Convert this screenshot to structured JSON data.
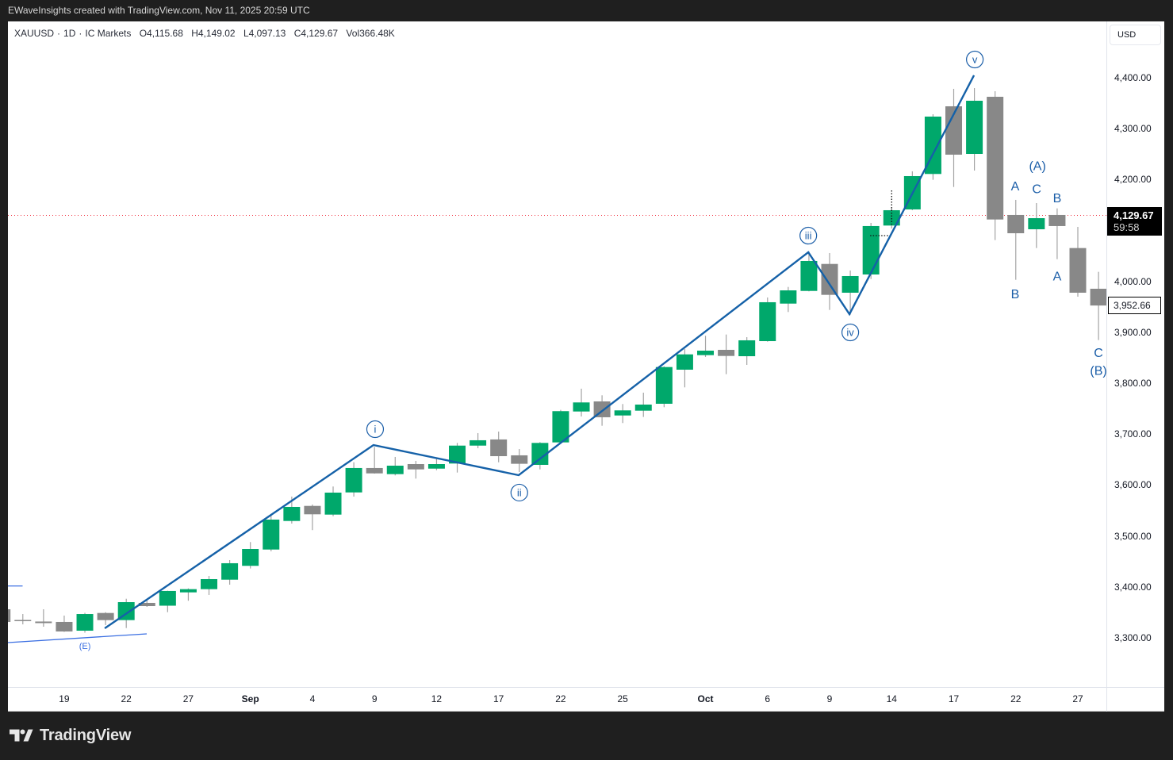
{
  "header": {
    "attribution": "EWaveInsights created with TradingView.com, Nov 11, 2025 20:59 UTC"
  },
  "legend": {
    "symbol": "XAUUSD",
    "separator": "·",
    "interval": "1D",
    "exchange": "IC Markets",
    "open": "O4,115.68",
    "high": "H4,149.02",
    "low": "L4,097.13",
    "close": "C4,129.67",
    "volume": "Vol366.48K"
  },
  "price_axis": {
    "currency": "USD",
    "ticks": [
      {
        "label": "4,400.00",
        "price": 4400
      },
      {
        "label": "4,300.00",
        "price": 4300
      },
      {
        "label": "4,200.00",
        "price": 4200
      },
      {
        "label": "4,000.00",
        "price": 4000
      },
      {
        "label": "3,900.00",
        "price": 3900
      },
      {
        "label": "3,800.00",
        "price": 3800
      },
      {
        "label": "3,700.00",
        "price": 3700
      },
      {
        "label": "3,600.00",
        "price": 3600
      },
      {
        "label": "3,500.00",
        "price": 3500
      },
      {
        "label": "3,400.00",
        "price": 3400
      },
      {
        "label": "3,300.00",
        "price": 3300
      }
    ],
    "last_price": {
      "label": "4,129.67",
      "countdown": "59:58",
      "price": 4129.67
    },
    "marker": {
      "label": "3,952.66",
      "price": 3952.66
    }
  },
  "time_axis": {
    "labels": [
      {
        "label": "19",
        "i": 0
      },
      {
        "label": "22",
        "i": 3
      },
      {
        "label": "27",
        "i": 6
      },
      {
        "label": "Sep",
        "i": 9,
        "is_month": true
      },
      {
        "label": "4",
        "i": 12
      },
      {
        "label": "9",
        "i": 15
      },
      {
        "label": "12",
        "i": 18
      },
      {
        "label": "17",
        "i": 21
      },
      {
        "label": "22",
        "i": 24
      },
      {
        "label": "25",
        "i": 27
      },
      {
        "label": "Oct",
        "i": 31,
        "is_month": true
      },
      {
        "label": "6",
        "i": 34
      },
      {
        "label": "9",
        "i": 37
      },
      {
        "label": "14",
        "i": 40
      },
      {
        "label": "17",
        "i": 43
      },
      {
        "label": "22",
        "i": 46
      },
      {
        "label": "27",
        "i": 49
      }
    ]
  },
  "footer": {
    "brand": "TradingView"
  },
  "colors": {
    "up": "#00a86b",
    "down": "#888888",
    "wick": "#a3a3a3",
    "wave_line": "#1561a8",
    "label": "#1b5ea8",
    "trendline": "#3b6fe2",
    "price_line": "#f23645",
    "marker_line": "#111111"
  },
  "chart_data": {
    "type": "candlestick",
    "title": "XAUUSD · 1D · IC Markets",
    "xlabel": "",
    "ylabel": "USD",
    "ylim": [
      3203.4,
      4510.6
    ],
    "grid": false,
    "legend_position": "top-left",
    "current_price": 4129.67,
    "view": {
      "x_index_range": [
        -2.72,
        50.38
      ],
      "y_price_range": [
        3203.4,
        4510.6
      ]
    },
    "first_index": -3,
    "candles": [
      {
        "d": "Aug 14",
        "o": 3356.1,
        "h": 3359.2,
        "l": 3328.1,
        "c": 3331.2
      },
      {
        "d": "Aug 15",
        "o": 3335.1,
        "h": 3346.7,
        "l": 3326.5,
        "c": 3333.5
      },
      {
        "d": "Aug 18",
        "o": 3332.0,
        "h": 3356.1,
        "l": 3321.8,
        "c": 3328.9
      },
      {
        "d": "Aug 19",
        "o": 3331.2,
        "h": 3343.7,
        "l": 3311.7,
        "c": 3312.5
      },
      {
        "d": "Aug 20",
        "o": 3314.0,
        "h": 3349.1,
        "l": 3310.1,
        "c": 3346.7
      },
      {
        "d": "Aug 21",
        "o": 3348.8,
        "h": 3350.3,
        "l": 3325.0,
        "c": 3334.8
      },
      {
        "d": "Aug 22",
        "o": 3334.8,
        "h": 3376.8,
        "l": 3319.2,
        "c": 3370.1
      },
      {
        "d": "Aug 25",
        "o": 3368.6,
        "h": 3373.7,
        "l": 3360.8,
        "c": 3362.3
      },
      {
        "d": "Aug 26",
        "o": 3363.1,
        "h": 3392.5,
        "l": 3350.4,
        "c": 3392.0
      },
      {
        "d": "Aug 27",
        "o": 3389.3,
        "h": 3397.1,
        "l": 3372.8,
        "c": 3395.6
      },
      {
        "d": "Aug 28",
        "o": 3395.6,
        "h": 3421.5,
        "l": 3384.2,
        "c": 3415.3
      },
      {
        "d": "Aug 29",
        "o": 3414.2,
        "h": 3452.7,
        "l": 3404.4,
        "c": 3446.5
      },
      {
        "d": "Sep 1",
        "o": 3441.4,
        "h": 3488.1,
        "l": 3436.2,
        "c": 3474.5
      },
      {
        "d": "Sep 2",
        "o": 3473.4,
        "h": 3540.0,
        "l": 3469.9,
        "c": 3532.2
      },
      {
        "d": "Sep 3",
        "o": 3529.5,
        "h": 3577.4,
        "l": 3524.4,
        "c": 3557.1
      },
      {
        "d": "Sep 4",
        "o": 3559.1,
        "h": 3561.8,
        "l": 3511.5,
        "c": 3542.6
      },
      {
        "d": "Sep 5",
        "o": 3542.0,
        "h": 3597.2,
        "l": 3538.9,
        "c": 3585.2
      },
      {
        "d": "Sep 8",
        "o": 3585.6,
        "h": 3644.8,
        "l": 3577.4,
        "c": 3633.5
      },
      {
        "d": "Sep 9",
        "o": 3633.5,
        "h": 3675.0,
        "l": 3622.5,
        "c": 3623.0
      },
      {
        "d": "Sep 10",
        "o": 3621.5,
        "h": 3655.3,
        "l": 3619.0,
        "c": 3638.1
      },
      {
        "d": "Sep 11",
        "o": 3641.2,
        "h": 3647.5,
        "l": 3612.7,
        "c": 3630.8
      },
      {
        "d": "Sep 12",
        "o": 3632.3,
        "h": 3654.2,
        "l": 3629.2,
        "c": 3641.2
      },
      {
        "d": "Sep 15",
        "o": 3642.3,
        "h": 3682.8,
        "l": 3624.6,
        "c": 3677.5
      },
      {
        "d": "Sep 16",
        "o": 3677.5,
        "h": 3702.0,
        "l": 3672.4,
        "c": 3688.0
      },
      {
        "d": "Sep 17",
        "o": 3689.6,
        "h": 3705.1,
        "l": 3644.8,
        "c": 3656.8
      },
      {
        "d": "Sep 18",
        "o": 3658.4,
        "h": 3670.8,
        "l": 3625.6,
        "c": 3641.8
      },
      {
        "d": "Sep 19",
        "o": 3639.7,
        "h": 3684.4,
        "l": 3630.8,
        "c": 3682.8
      },
      {
        "d": "Sep 22",
        "o": 3683.8,
        "h": 3747.7,
        "l": 3682.8,
        "c": 3745.2
      },
      {
        "d": "Sep 23",
        "o": 3744.5,
        "h": 3789.3,
        "l": 3734.7,
        "c": 3762.3
      },
      {
        "d": "Sep 24",
        "o": 3764.3,
        "h": 3776.3,
        "l": 3716.5,
        "c": 3733.2
      },
      {
        "d": "Sep 25",
        "o": 3736.7,
        "h": 3759.2,
        "l": 3721.8,
        "c": 3746.7
      },
      {
        "d": "Sep 26",
        "o": 3746.1,
        "h": 3781.5,
        "l": 3733.8,
        "c": 3758.1
      },
      {
        "d": "Sep 29",
        "o": 3759.7,
        "h": 3833.3,
        "l": 3752.9,
        "c": 3831.8
      },
      {
        "d": "Sep 30",
        "o": 3826.6,
        "h": 3867.2,
        "l": 3791.9,
        "c": 3856.7
      },
      {
        "d": "Oct 1",
        "o": 3855.2,
        "h": 3893.2,
        "l": 3851.6,
        "c": 3864.0
      },
      {
        "d": "Oct 2",
        "o": 3865.6,
        "h": 3895.7,
        "l": 3817.8,
        "c": 3853.6
      },
      {
        "d": "Oct 3",
        "o": 3853.1,
        "h": 3890.5,
        "l": 3836.0,
        "c": 3884.3
      },
      {
        "d": "Oct 6",
        "o": 3882.7,
        "h": 3968.4,
        "l": 3881.6,
        "c": 3959.1
      },
      {
        "d": "Oct 7",
        "o": 3956.4,
        "h": 3989.1,
        "l": 3939.9,
        "c": 3982.4
      },
      {
        "d": "Oct 8",
        "o": 3981.3,
        "h": 4059.0,
        "l": 3980.4,
        "c": 4040.1
      },
      {
        "d": "Oct 9",
        "o": 4034.3,
        "h": 4055.7,
        "l": 3944.0,
        "c": 3973.6
      },
      {
        "d": "Oct 10",
        "o": 3977.8,
        "h": 4021.4,
        "l": 3934.6,
        "c": 4010.5
      },
      {
        "d": "Oct 13",
        "o": 4013.6,
        "h": 4114.9,
        "l": 4004.7,
        "c": 4108.7
      },
      {
        "d": "Oct 14",
        "o": 4109.7,
        "h": 4144.5,
        "l": 4104.0,
        "c": 4139.8
      },
      {
        "d": "Oct 15",
        "o": 4141.4,
        "h": 4216.2,
        "l": 4139.8,
        "c": 4206.8
      },
      {
        "d": "Oct 16",
        "o": 4211.0,
        "h": 4328.3,
        "l": 4199.5,
        "c": 4323.7
      },
      {
        "d": "Oct 17",
        "o": 4343.9,
        "h": 4378.2,
        "l": 4185.5,
        "c": 4248.9
      },
      {
        "d": "Oct 20",
        "o": 4250.4,
        "h": 4379.7,
        "l": 4217.7,
        "c": 4354.8
      },
      {
        "d": "Oct 21",
        "o": 4362.6,
        "h": 4373.5,
        "l": 4081.1,
        "c": 4121.6
      },
      {
        "d": "Oct 22",
        "o": 4130.5,
        "h": 4160.1,
        "l": 4003.2,
        "c": 4094.6
      },
      {
        "d": "Oct 23",
        "o": 4102.4,
        "h": 4153.8,
        "l": 4065.5,
        "c": 4124.2
      },
      {
        "d": "Oct 24",
        "o": 4130.5,
        "h": 4143.4,
        "l": 4043.7,
        "c": 4108.7
      },
      {
        "d": "Oct 27",
        "o": 4065.5,
        "h": 4107.1,
        "l": 3970.0,
        "c": 3977.8
      },
      {
        "d": "Oct 28",
        "o": 3985.6,
        "h": 4018.8,
        "l": 3884.8,
        "c": 3952.66
      }
    ],
    "wave_path": [
      {
        "i": 1.96,
        "p": 3318.7
      },
      {
        "i": 14.95,
        "p": 3678.6
      },
      {
        "i": 21.97,
        "p": 3619.4
      },
      {
        "i": 35.97,
        "p": 4057.2
      },
      {
        "i": 37.96,
        "p": 3935.7
      },
      {
        "i": 43.98,
        "p": 4404.7
      }
    ],
    "wave_labels": [
      {
        "text": "i",
        "i": 15.03,
        "p": 3709.8
      },
      {
        "text": "ii",
        "i": 22.0,
        "p": 3585.2
      },
      {
        "text": "iii",
        "i": 35.97,
        "p": 4089.9
      },
      {
        "text": "iv",
        "i": 38.0,
        "p": 3899.9
      },
      {
        "text": "v",
        "i": 44.02,
        "p": 4435.8
      }
    ],
    "letter_labels": [
      {
        "text": "(E)",
        "i": 1.0,
        "p": 3284.4,
        "small": true
      },
      {
        "text": "A",
        "i": 45.97,
        "p": 4188.1
      },
      {
        "text": "(A)",
        "i": 47.05,
        "p": 4227.1
      },
      {
        "text": "C",
        "i": 47.01,
        "p": 4181.9
      },
      {
        "text": "B",
        "i": 48.0,
        "p": 4164.7
      },
      {
        "text": "B",
        "i": 45.97,
        "p": 3976.2
      },
      {
        "text": "A",
        "i": 48.0,
        "p": 4010.5
      },
      {
        "text": "C",
        "i": 50.0,
        "p": 3860.9
      },
      {
        "text": "(B)",
        "i": 50.0,
        "p": 3825.1
      }
    ],
    "trendlines": [
      {
        "i1": -2.72,
        "p1": 3290.7,
        "i2": 3.99,
        "p2": 3307.8
      },
      {
        "i1": -2.72,
        "p1": 3401.8,
        "i2": -2.01,
        "p2": 3401.8
      }
    ],
    "dotted_markers": [
      {
        "i1": 40.0,
        "p1": 4178.8,
        "i2": 40.0,
        "p2": 4111.8
      },
      {
        "i1": 38.96,
        "p1": 4089.9,
        "i2": 39.92,
        "p2": 4089.9
      }
    ]
  }
}
